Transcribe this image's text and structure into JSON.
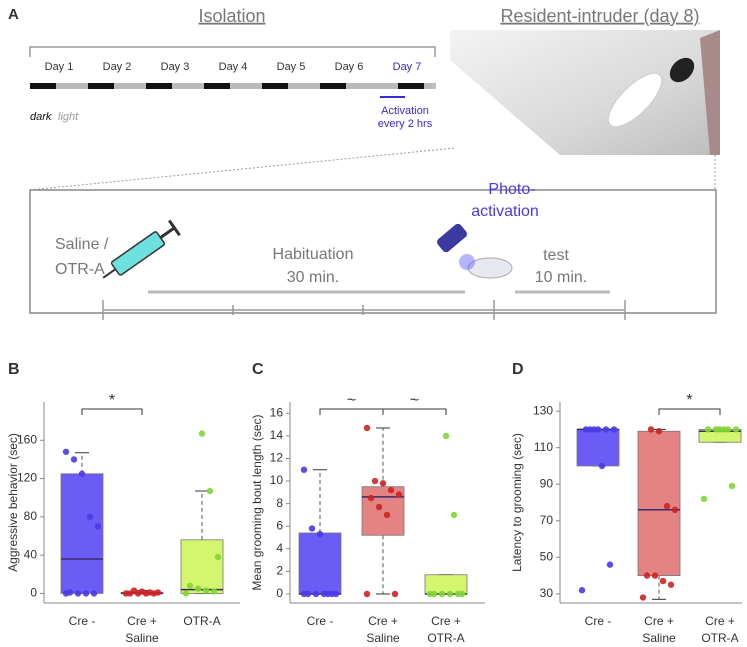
{
  "panel_a": {
    "letter": "A",
    "isolation": "Isolation",
    "resident_intruder": "Resident-intruder (day 8)",
    "days": [
      "Day 1",
      "Day 2",
      "Day 3",
      "Day 4",
      "Day 5",
      "Day 6",
      "Day 7"
    ],
    "dark": "dark",
    "light": "light",
    "activation": [
      "Activation",
      "every 2 hrs"
    ],
    "saline": [
      "Saline /",
      "OTR-A"
    ],
    "habituation": [
      "Habituation",
      "30 min."
    ],
    "photo": [
      "Photo-",
      "activation"
    ],
    "test": [
      "test",
      "10 min."
    ]
  },
  "chart_data": [
    {
      "type": "box",
      "panel": "B",
      "ylabel": "Aggressive behavior (sec)",
      "categories": [
        [
          "Cre -"
        ],
        [
          "Cre +",
          "Saline"
        ],
        [
          "OTR-A"
        ]
      ],
      "ylim": [
        -10,
        200
      ],
      "yticks": [
        0,
        40,
        80,
        120,
        160
      ],
      "boxes": [
        {
          "color": "#6b5cf5",
          "point_color": "#4a3ae6",
          "whisker_low": 0,
          "q1": 0,
          "median": 36,
          "q3": 125,
          "whisker_high": 147,
          "points": [
            0,
            0,
            0,
            0,
            1,
            70,
            80,
            125,
            140,
            148
          ]
        },
        {
          "color": "#e38383",
          "point_color": "#cc2222",
          "whisker_low": 0,
          "q1": 0,
          "median": 0,
          "q3": 1,
          "whisker_high": 3,
          "points": [
            0,
            0,
            0,
            0,
            0,
            1,
            1,
            2,
            3
          ]
        },
        {
          "color": "#d4f56e",
          "point_color": "#7fd633",
          "whisker_low": 0,
          "q1": 0,
          "median": 4,
          "q3": 56,
          "whisker_high": 107,
          "points": [
            0,
            2,
            3,
            5,
            8,
            38,
            107,
            167
          ]
        }
      ],
      "significance": [
        {
          "from": 0,
          "to": 1,
          "label": "*"
        }
      ]
    },
    {
      "type": "box",
      "panel": "C",
      "ylabel": "Mean grooming bout length (sec)",
      "categories": [
        [
          "Cre -"
        ],
        [
          "Cre +",
          "Saline"
        ],
        [
          "Cre +",
          "OTR-A"
        ]
      ],
      "ylim": [
        -0.8,
        17
      ],
      "yticks": [
        0,
        2,
        4,
        6,
        8,
        10,
        12,
        14,
        16
      ],
      "boxes": [
        {
          "color": "#6b5cf5",
          "point_color": "#4a3ae6",
          "whisker_low": 0,
          "q1": 0,
          "median": 0,
          "q3": 5.4,
          "whisker_high": 11,
          "points": [
            0,
            0,
            0,
            0,
            0,
            0,
            0,
            5.3,
            5.8,
            11
          ]
        },
        {
          "color": "#e38383",
          "point_color": "#cc2222",
          "whisker_low": 0,
          "q1": 5.2,
          "median": 8.6,
          "q3": 9.5,
          "whisker_high": 14.7,
          "points": [
            0,
            0,
            7,
            7.7,
            8.5,
            8.8,
            9.2,
            9.8,
            10,
            14.7
          ]
        },
        {
          "color": "#d4f56e",
          "point_color": "#7fd633",
          "whisker_low": 0,
          "q1": 0,
          "median": 0,
          "q3": 1.7,
          "whisker_high": 1.7,
          "points": [
            0,
            0,
            0,
            0,
            0,
            0,
            7,
            14
          ]
        }
      ],
      "significance": [
        {
          "from": 0,
          "to": 1,
          "label": "~"
        },
        {
          "from": 1,
          "to": 2,
          "label": "~"
        }
      ]
    },
    {
      "type": "box",
      "panel": "D",
      "ylabel": "Latency to grooming (sec)",
      "categories": [
        [
          "Cre -"
        ],
        [
          "Cre +",
          "Saline"
        ],
        [
          "Cre +",
          "OTR-A"
        ]
      ],
      "ylim": [
        25,
        135
      ],
      "yticks": [
        30,
        50,
        70,
        90,
        110,
        130
      ],
      "boxes": [
        {
          "color": "#6b5cf5",
          "point_color": "#4a3ae6",
          "whisker_low": 100,
          "q1": 100,
          "median": 120,
          "q3": 120,
          "whisker_high": 120,
          "points": [
            32,
            46,
            100,
            120,
            120,
            120,
            120,
            120,
            120
          ]
        },
        {
          "color": "#e38383",
          "point_color": "#cc2222",
          "whisker_low": 27,
          "q1": 40,
          "median": 76,
          "q3": 119,
          "whisker_high": 120,
          "points": [
            28,
            35,
            37,
            40,
            40,
            76,
            78,
            119,
            120
          ]
        },
        {
          "color": "#d4f56e",
          "point_color": "#7fd633",
          "whisker_low": 113,
          "q1": 113,
          "median": 119,
          "q3": 120,
          "whisker_high": 120,
          "points": [
            82,
            89,
            120,
            120,
            120,
            120,
            120,
            120
          ]
        }
      ],
      "significance": [
        {
          "from": 1,
          "to": 2,
          "label": "*"
        }
      ]
    }
  ]
}
